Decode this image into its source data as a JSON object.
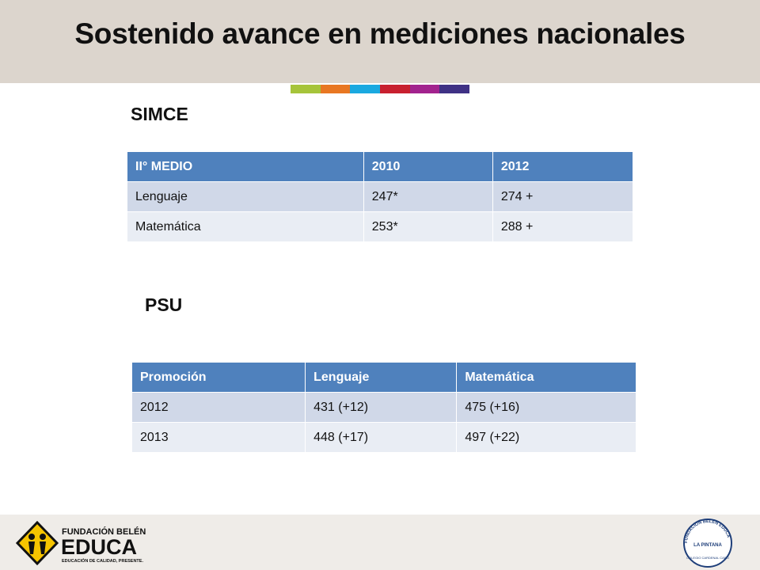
{
  "header": {
    "title": "Sostenido avance en mediciones nacionales"
  },
  "sections": [
    {
      "heading": "SIMCE",
      "table": {
        "header": [
          "II° MEDIO",
          "2010",
          "2012"
        ],
        "rows": [
          [
            "Lenguaje",
            "247*",
            "274 +"
          ],
          [
            "Matemática",
            "253*",
            "288 +"
          ]
        ]
      }
    },
    {
      "heading": "PSU",
      "table": {
        "header": [
          "Promoción",
          "Lenguaje",
          "Matemática"
        ],
        "rows": [
          [
            "2012",
            "431 (+12)",
            "475 (+16)"
          ],
          [
            "2013",
            "448 (+17)",
            "497 (+22)"
          ]
        ]
      }
    }
  ],
  "footer": {
    "left_logo": {
      "line1": "FUNDACIÓN BELÉN",
      "line2": "EDUCA",
      "tagline": "EDUCACIÓN DE CALIDAD, PRESENTE."
    },
    "right_logo": {
      "ring": "FUNDACIÓN BELÉN EDUCA",
      "center": "LA PINTANA",
      "bottom": "COLEGIO CARDENAL CARO"
    }
  }
}
